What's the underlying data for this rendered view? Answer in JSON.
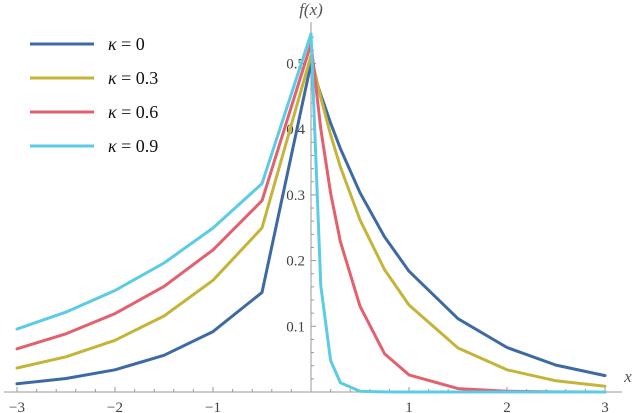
{
  "chart_data": {
    "type": "line",
    "title": "",
    "xlabel": "x",
    "ylabel": "f(x)",
    "xlim": [
      -3,
      3
    ],
    "ylim": [
      0,
      0.56
    ],
    "grid": false,
    "legend_position": "top-left",
    "x_ticks": [
      {
        "value": -3,
        "label": "−3"
      },
      {
        "value": -2,
        "label": "−2"
      },
      {
        "value": -1,
        "label": "−1"
      },
      {
        "value": 1,
        "label": "1"
      },
      {
        "value": 2,
        "label": "2"
      },
      {
        "value": 3,
        "label": "3"
      }
    ],
    "y_ticks": [
      {
        "value": 0.1,
        "label": "0.1"
      },
      {
        "value": 0.2,
        "label": "0.2"
      },
      {
        "value": 0.3,
        "label": "0.3"
      },
      {
        "value": 0.4,
        "label": "0.4"
      },
      {
        "value": 0.5,
        "label": "0.5"
      }
    ],
    "x": [
      -3.0,
      -2.5,
      -2.0,
      -1.5,
      -1.0,
      -0.5,
      0.0,
      0.1,
      0.2,
      0.3,
      0.5,
      0.75,
      1.0,
      1.5,
      2.0,
      2.5,
      3.0
    ],
    "series": [
      {
        "name": "κ = 0",
        "kappa_label": "κ",
        "value_label": "= 0",
        "color": "#3e6aa3",
        "left": [
          0.0125,
          0.0205,
          0.0338,
          0.0558,
          0.092,
          0.1516,
          0.5
        ],
        "right": [
          0.5,
          0.4524,
          0.4094,
          0.3704,
          0.3033,
          0.2362,
          0.1839,
          0.1116,
          0.0677,
          0.041,
          0.0249
        ]
      },
      {
        "name": "κ = 0.3",
        "kappa_label": "κ",
        "value_label": "= 0.3",
        "color": "#c5b43a",
        "left": [
          0.0365,
          0.0536,
          0.0787,
          0.1157,
          0.17,
          0.2498,
          0.512
        ],
        "right": [
          0.512,
          0.4478,
          0.3916,
          0.3425,
          0.262,
          0.1863,
          0.1324,
          0.0669,
          0.0338,
          0.0171,
          0.0087
        ]
      },
      {
        "name": "κ = 0.6",
        "kappa_label": "κ",
        "value_label": "= 0.6",
        "color": "#e3606e",
        "left": [
          0.0658,
          0.0886,
          0.1193,
          0.1607,
          0.2163,
          0.2912,
          0.53
        ],
        "right": [
          0.53,
          0.4005,
          0.3027,
          0.2287,
          0.1306,
          0.0583,
          0.026,
          0.0052,
          0.001,
          0.0002,
          0.0
        ]
      },
      {
        "name": "κ = 0.9",
        "kappa_label": "κ",
        "value_label": "= 0.9",
        "color": "#5ccbe6",
        "left": [
          0.0957,
          0.1216,
          0.1545,
          0.1964,
          0.2496,
          0.3172,
          0.545
        ],
        "right": [
          0.545,
          0.1616,
          0.0479,
          0.0142,
          0.0012,
          0.0001,
          0.0,
          0.0,
          0.0,
          0.0,
          0.0
        ]
      }
    ]
  }
}
